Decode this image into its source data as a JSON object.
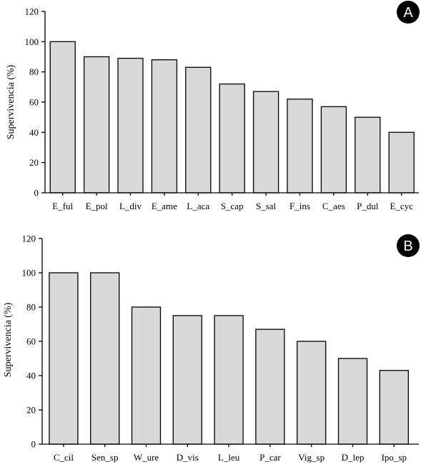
{
  "chart_data": [
    {
      "panel": "A",
      "type": "bar",
      "title": "",
      "xlabel": "",
      "ylabel": "Supervivencia (%)",
      "ylim": [
        0,
        120
      ],
      "yticks": [
        0,
        20,
        40,
        60,
        80,
        100,
        120
      ],
      "grid": false,
      "legend": "none",
      "bar_color": "#d9d9d9",
      "edge_color": "#000000",
      "categories": [
        "E_ful",
        "E_pol",
        "L_div",
        "E_ame",
        "L_aca",
        "S_cap",
        "S_sal",
        "F_ins",
        "C_aes",
        "P_dul",
        "E_cyc"
      ],
      "values": [
        100,
        90,
        89,
        88,
        83,
        72,
        67,
        62,
        57,
        50,
        40
      ]
    },
    {
      "panel": "B",
      "type": "bar",
      "title": "",
      "xlabel": "",
      "ylabel": "Supervivencia (%)",
      "ylim": [
        0,
        120
      ],
      "yticks": [
        0,
        20,
        40,
        60,
        80,
        100,
        120
      ],
      "grid": false,
      "legend": "none",
      "bar_color": "#d9d9d9",
      "edge_color": "#000000",
      "categories": [
        "C_cil",
        "Sen_sp",
        "W_ure",
        "D_vis",
        "L_leu",
        "P_car",
        "Vig_sp",
        "D_lep",
        "Ipo_sp"
      ],
      "values": [
        100,
        100,
        80,
        75,
        75,
        67,
        60,
        50,
        43
      ]
    }
  ]
}
